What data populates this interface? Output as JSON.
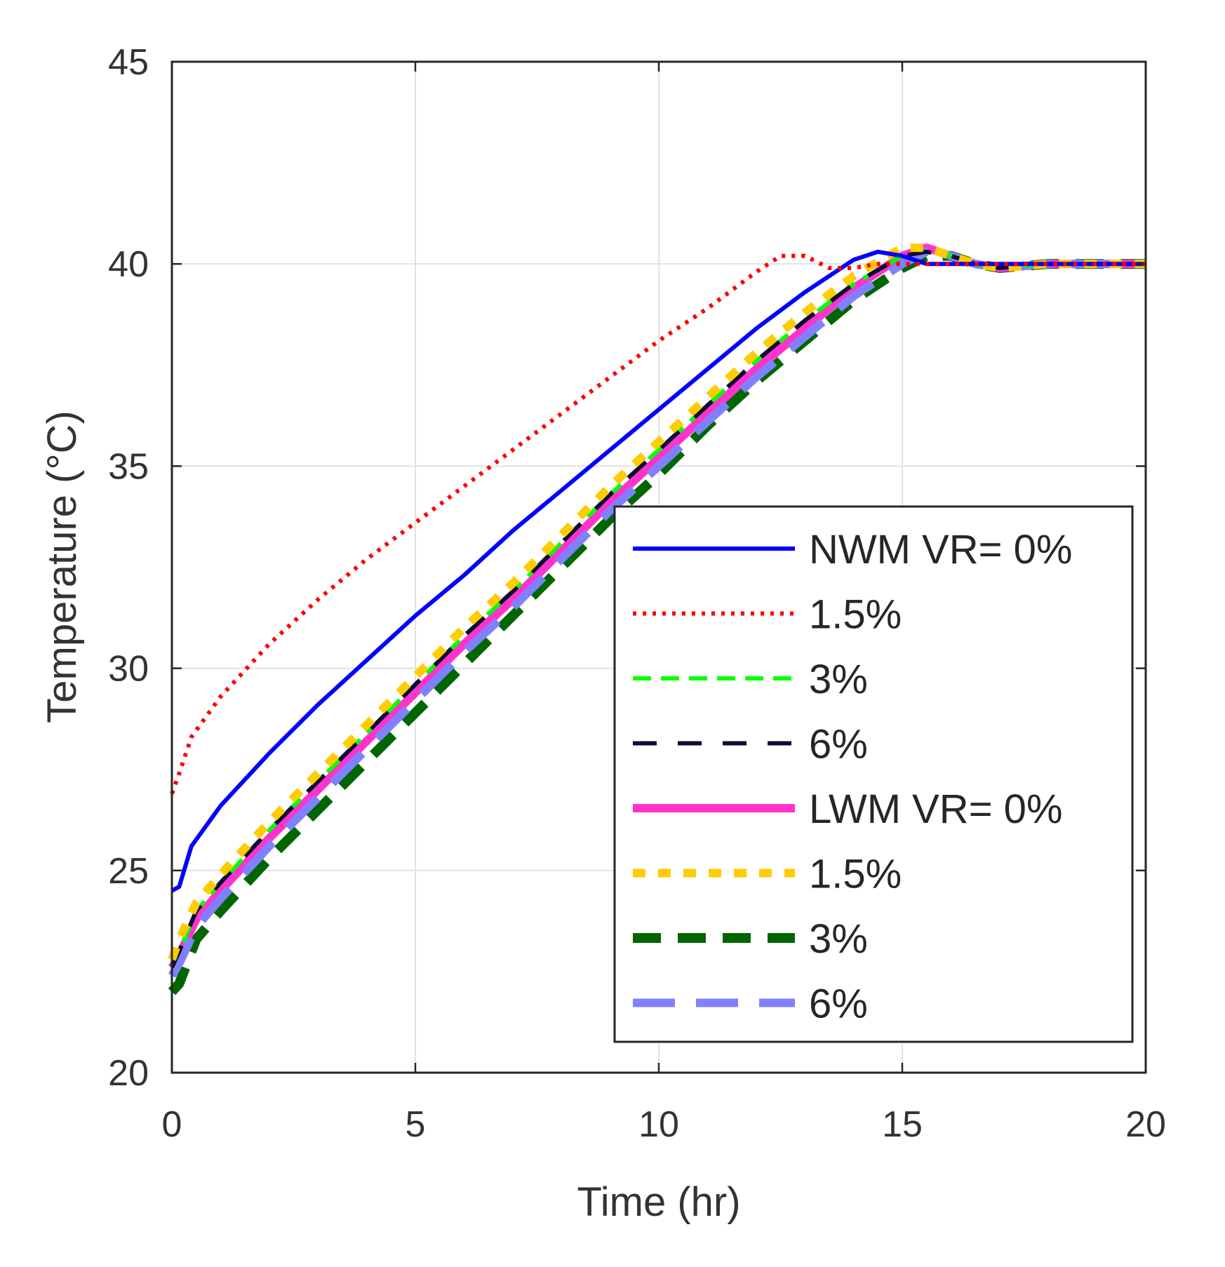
{
  "chart_data": {
    "type": "line",
    "title": "",
    "xlabel": "Time (hr)",
    "ylabel": "Temperature (°C)",
    "xlim": [
      0,
      20
    ],
    "ylim": [
      20,
      45
    ],
    "xticks": [
      "0",
      "5",
      "10",
      "15",
      "20"
    ],
    "yticks": [
      "20",
      "25",
      "30",
      "35",
      "40",
      "45"
    ],
    "grid": true,
    "legend_position": "bottom-right",
    "series": [
      {
        "name": "NWM VR= 0%",
        "color": "#0000ff",
        "x": [
          0,
          0.15,
          0.4,
          1,
          2,
          3,
          4,
          5,
          6,
          7,
          8,
          9,
          10,
          11,
          12,
          13,
          14,
          14.5,
          15,
          15.5,
          16,
          17,
          18,
          19,
          20
        ],
        "y": [
          24.5,
          24.6,
          25.6,
          26.6,
          27.9,
          29.1,
          30.2,
          31.3,
          32.3,
          33.4,
          34.4,
          35.4,
          36.4,
          37.4,
          38.4,
          39.3,
          40.1,
          40.3,
          40.2,
          40.0,
          40.0,
          40.0,
          40.0,
          40.0,
          40.0
        ]
      },
      {
        "name": "1.5%",
        "color": "#ff0000",
        "x": [
          0,
          0.15,
          0.4,
          1,
          2,
          3,
          4,
          5,
          6,
          7,
          8,
          9,
          10,
          11,
          12,
          12.5,
          13,
          13.5,
          14,
          14.5,
          15,
          16,
          17,
          18,
          19,
          20
        ],
        "y": [
          26.9,
          27.4,
          28.3,
          29.3,
          30.6,
          31.7,
          32.7,
          33.6,
          34.5,
          35.4,
          36.3,
          37.2,
          38.1,
          38.9,
          39.8,
          40.2,
          40.2,
          39.9,
          39.9,
          40.0,
          40.0,
          40.0,
          40.0,
          40.0,
          40.0,
          40.0
        ]
      },
      {
        "name": "3%",
        "color": "#00ff00",
        "x": [
          0,
          0.15,
          0.5,
          1,
          2,
          3,
          4,
          5,
          6,
          7,
          8,
          9,
          10,
          11,
          12,
          13,
          14,
          15,
          15.5,
          16,
          16.5,
          17,
          18,
          19,
          20
        ],
        "y": [
          22.6,
          23.0,
          24.0,
          24.7,
          26.0,
          27.2,
          28.4,
          29.6,
          30.8,
          31.9,
          33.1,
          34.3,
          35.4,
          36.5,
          37.6,
          38.6,
          39.5,
          40.2,
          40.3,
          40.2,
          40.0,
          39.9,
          40.0,
          40.0,
          40.0
        ]
      },
      {
        "name": "6%",
        "color": "#0b0b35",
        "x": [
          0,
          0.15,
          0.5,
          1,
          2,
          3,
          4,
          5,
          6,
          7,
          8,
          9,
          10,
          11,
          12,
          13,
          14,
          15,
          15.5,
          16,
          16.5,
          17,
          18,
          19,
          20
        ],
        "y": [
          22.6,
          23.0,
          24.0,
          24.7,
          26.0,
          27.2,
          28.4,
          29.6,
          30.8,
          31.9,
          33.1,
          34.3,
          35.4,
          36.5,
          37.6,
          38.6,
          39.5,
          40.2,
          40.3,
          40.2,
          40.0,
          39.9,
          40.0,
          40.0,
          40.0
        ]
      },
      {
        "name": "LWM VR= 0%",
        "color": "#ff33cc",
        "x": [
          0,
          0.15,
          0.5,
          1,
          2,
          3,
          4,
          5,
          6,
          7,
          8,
          9,
          10,
          11,
          12,
          13,
          14,
          15,
          15.5,
          16,
          16.5,
          17,
          18,
          19,
          20
        ],
        "y": [
          22.6,
          22.9,
          23.8,
          24.5,
          25.8,
          27.0,
          28.2,
          29.4,
          30.6,
          31.7,
          32.9,
          34.1,
          35.2,
          36.3,
          37.4,
          38.4,
          39.4,
          40.2,
          40.4,
          40.2,
          40.0,
          39.9,
          40.0,
          40.0,
          40.0
        ]
      },
      {
        "name": "1.5%",
        "color": "#ffcc00",
        "x": [
          0,
          0.15,
          0.5,
          1,
          2,
          3,
          4,
          5,
          6,
          7,
          8,
          9,
          10,
          11,
          12,
          13,
          14,
          15,
          15.5,
          16,
          16.5,
          17,
          18,
          19,
          20
        ],
        "y": [
          22.8,
          23.3,
          24.2,
          24.9,
          26.2,
          27.4,
          28.6,
          29.8,
          31.0,
          32.1,
          33.3,
          34.5,
          35.6,
          36.7,
          37.8,
          38.8,
          39.7,
          40.4,
          40.4,
          40.2,
          40.0,
          39.9,
          40.0,
          40.0,
          40.0
        ]
      },
      {
        "name": "3%",
        "color": "#006600",
        "x": [
          0,
          0.15,
          0.5,
          1,
          2,
          3,
          4,
          5,
          6,
          7,
          8,
          9,
          10,
          11,
          12,
          13,
          14,
          15,
          15.5,
          16,
          16.5,
          17,
          18,
          19,
          20
        ],
        "y": [
          22.0,
          22.2,
          23.3,
          24.0,
          25.3,
          26.5,
          27.7,
          28.9,
          30.1,
          31.3,
          32.5,
          33.7,
          34.8,
          36.0,
          37.1,
          38.1,
          39.1,
          39.9,
          40.2,
          40.2,
          40.0,
          39.9,
          40.0,
          40.0,
          40.0
        ]
      },
      {
        "name": "6%",
        "color": "#8080ff",
        "x": [
          0,
          0.15,
          0.5,
          1,
          2,
          3,
          4,
          5,
          6,
          7,
          8,
          9,
          10,
          11,
          12,
          13,
          14,
          15,
          15.5,
          16,
          16.5,
          17,
          18,
          19,
          20
        ],
        "y": [
          22.4,
          22.7,
          23.6,
          24.3,
          25.6,
          26.8,
          28.0,
          29.2,
          30.4,
          31.5,
          32.7,
          33.9,
          35.0,
          36.1,
          37.2,
          38.2,
          39.2,
          40.0,
          40.3,
          40.2,
          40.0,
          39.9,
          40.0,
          40.0,
          40.0
        ]
      }
    ]
  }
}
